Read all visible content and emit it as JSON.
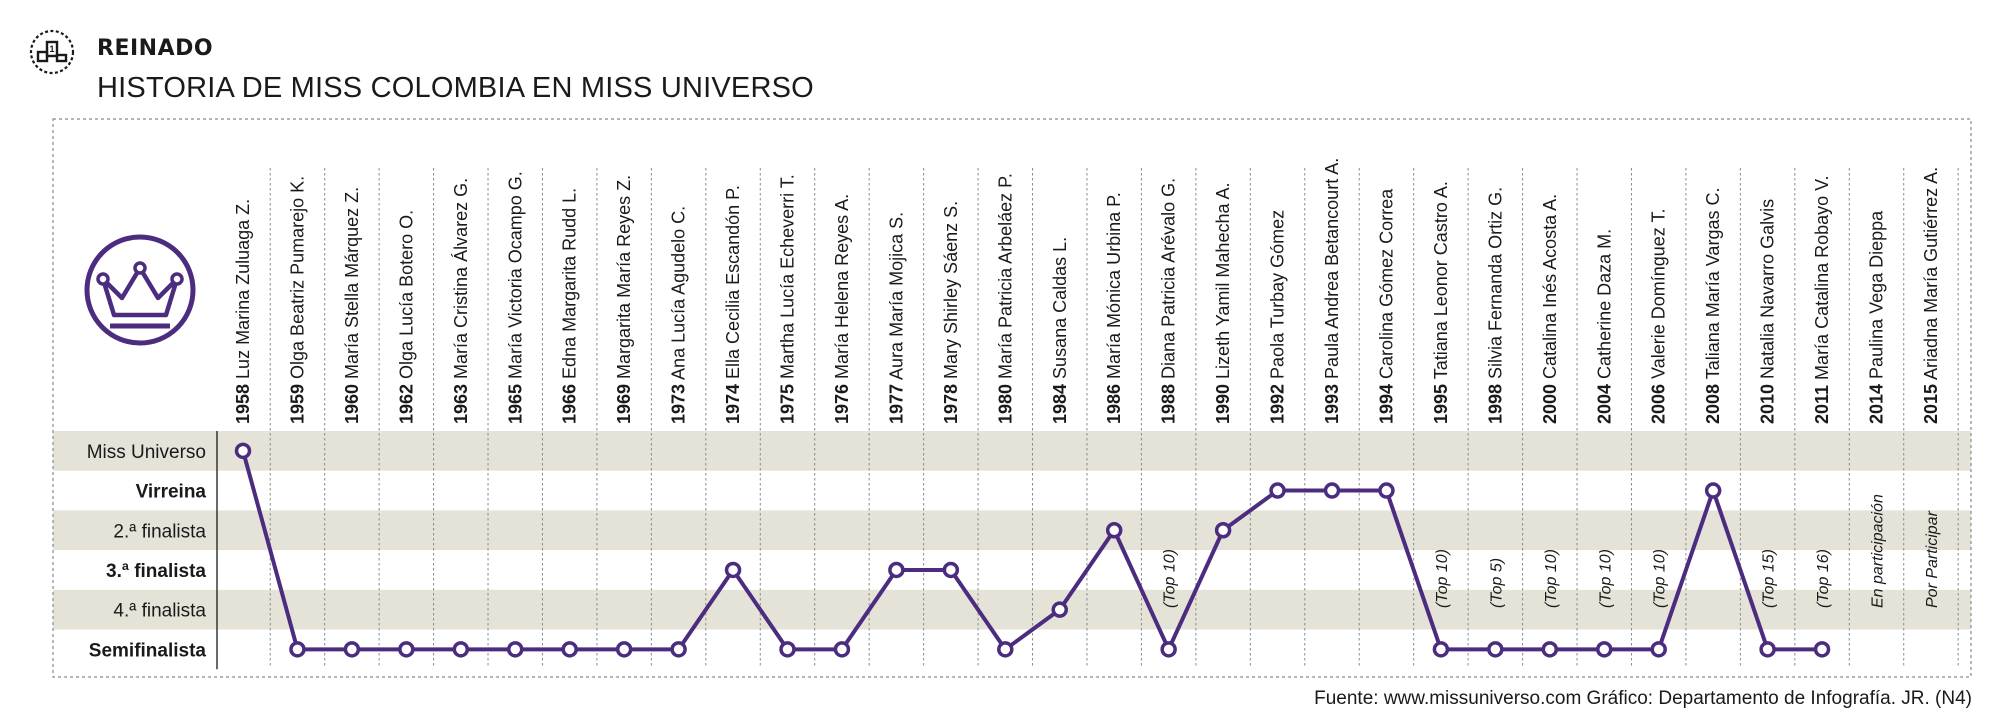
{
  "header": {
    "section": "REINADO",
    "title": "HISTORIA DE MISS COLOMBIA EN MISS UNIVERSO"
  },
  "footer": {
    "source": "Fuente: www.missuniverso.com Gráfico: Departamento de Infografía. JR. (N4)"
  },
  "colors": {
    "accent": "#4b2c7f",
    "band": "#e5e3d8",
    "grid": "#8a8a8a"
  },
  "icons": {
    "logo": "ranking-podium-icon",
    "crown": "crown-icon"
  },
  "chart_data": {
    "type": "line",
    "title": "HISTORIA DE MISS COLOMBIA EN MISS UNIVERSO",
    "levels": [
      "Miss Universo",
      "Virreina",
      "2.ª finalista",
      "3.ª finalista",
      "4.ª finalista",
      "Semifinalista"
    ],
    "entries": [
      {
        "year": "1958",
        "name": "Luz Marina Zuluaga Z.",
        "level": 0
      },
      {
        "year": "1959",
        "name": "Olga Beatriz Pumarejo K.",
        "level": 5
      },
      {
        "year": "1960",
        "name": "María Stella Márquez Z.",
        "level": 5
      },
      {
        "year": "1962",
        "name": "Olga Lucía Botero O.",
        "level": 5
      },
      {
        "year": "1963",
        "name": "María Cristina Álvarez G.",
        "level": 5
      },
      {
        "year": "1965",
        "name": "María Victoria Ocampo G.",
        "level": 5
      },
      {
        "year": "1966",
        "name": "Edna Margarita Rudd L.",
        "level": 5
      },
      {
        "year": "1969",
        "name": "Margarita María Reyes Z.",
        "level": 5
      },
      {
        "year": "1973",
        "name": "Ana Lucía Agudelo C.",
        "level": 5
      },
      {
        "year": "1974",
        "name": "Ella Cecilia Escandón P.",
        "level": 3
      },
      {
        "year": "1975",
        "name": "Martha Lucía Echeverri T.",
        "level": 5
      },
      {
        "year": "1976",
        "name": "María Helena Reyes A.",
        "level": 5
      },
      {
        "year": "1977",
        "name": "Aura María Mojica S.",
        "level": 3
      },
      {
        "year": "1978",
        "name": "Mary Shirley Sáenz S.",
        "level": 3
      },
      {
        "year": "1980",
        "name": "María Patricia Arbeláez P.",
        "level": 5
      },
      {
        "year": "1984",
        "name": "Susana Caldas L.",
        "level": 4
      },
      {
        "year": "1986",
        "name": "María Mónica Urbina P.",
        "level": 2
      },
      {
        "year": "1988",
        "name": "Diana Patricia Arévalo G.",
        "level": 5
      },
      {
        "year": "1990",
        "name": "Lizeth Yamil Mahecha A.",
        "level": 2
      },
      {
        "year": "1992",
        "name": "Paola Turbay Gómez",
        "level": 1
      },
      {
        "year": "1993",
        "name": "Paula Andrea Betancourt A.",
        "level": 1
      },
      {
        "year": "1994",
        "name": "Carolina Gómez Correa",
        "level": 1
      },
      {
        "year": "1995",
        "name": "Tatiana Leonor Castro A.",
        "level": 5
      },
      {
        "year": "1998",
        "name": "Silvia Fernanda Ortiz G.",
        "level": 5
      },
      {
        "year": "2000",
        "name": "Catalina Inés Acosta A.",
        "level": 5
      },
      {
        "year": "2004",
        "name": "Catherine Daza M.",
        "level": 5
      },
      {
        "year": "2006",
        "name": "Valerie Domínguez T.",
        "level": 5
      },
      {
        "year": "2008",
        "name": "Taliana María Vargas C.",
        "level": 1
      },
      {
        "year": "2010",
        "name": "Natalia Navarro Galvis",
        "level": 5
      },
      {
        "year": "2011",
        "name": "María Catalina Robayo V.",
        "level": 5
      },
      {
        "year": "2014",
        "name": "Paulina Vega Dieppa",
        "level": null
      },
      {
        "year": "2015",
        "name": "Ariadna María Gutiérrez A.",
        "level": null
      }
    ],
    "annotations": [
      {
        "index": 17,
        "text": "(Top 10)"
      },
      {
        "index": 22,
        "text": "(Top 10)"
      },
      {
        "index": 23,
        "text": "(Top 5)"
      },
      {
        "index": 24,
        "text": "(Top 10)"
      },
      {
        "index": 25,
        "text": "(Top 10)"
      },
      {
        "index": 26,
        "text": "(Top 10)"
      },
      {
        "index": 28,
        "text": "(Top 15)"
      },
      {
        "index": 29,
        "text": "(Top 16)"
      },
      {
        "index": 30,
        "text": "En participación"
      },
      {
        "index": 31,
        "text": "Por Participar"
      }
    ]
  }
}
